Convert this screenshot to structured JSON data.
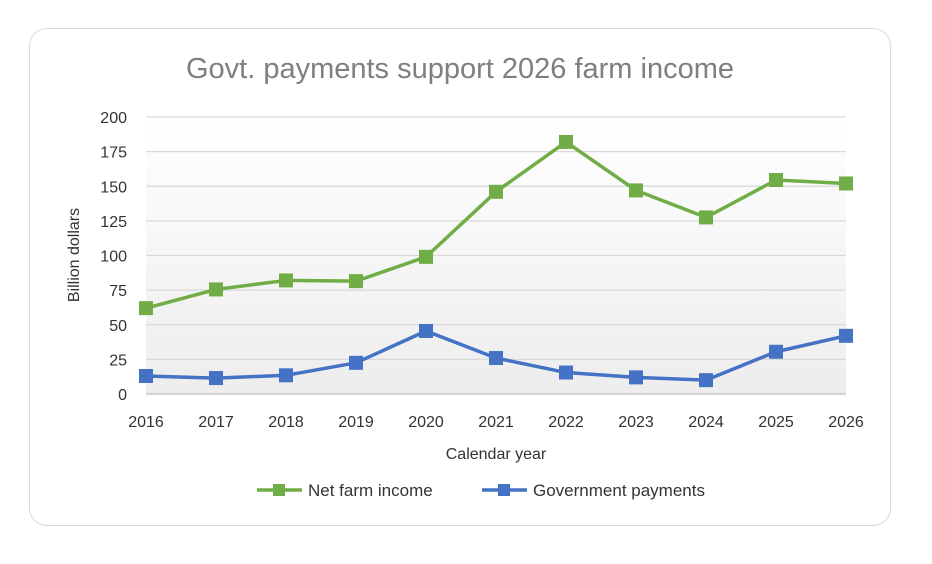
{
  "chart_data": {
    "type": "line",
    "title": "Govt. payments support 2026 farm income",
    "xlabel": "Calendar year",
    "ylabel": "Billion dollars",
    "x": [
      2016,
      2017,
      2018,
      2019,
      2020,
      2021,
      2022,
      2023,
      2024,
      2025,
      2026
    ],
    "x_tick_labels": [
      "2016",
      "2017",
      "2018",
      "2019",
      "2020",
      "2021",
      "2022",
      "2023",
      "2024",
      "2025",
      "2026"
    ],
    "ylim": [
      0,
      200
    ],
    "y_ticks": [
      0,
      25,
      50,
      75,
      100,
      125,
      150,
      175,
      200
    ],
    "y_tick_labels": [
      "0",
      "25",
      "50",
      "75",
      "100",
      "125",
      "150",
      "175",
      "200"
    ],
    "grid": true,
    "legend_position": "bottom",
    "series": [
      {
        "name": "Net farm income",
        "color": "#70ad47",
        "marker": "square",
        "values": [
          62,
          75.5,
          82,
          81.5,
          99,
          146,
          182,
          147,
          127.5,
          154.5,
          152
        ]
      },
      {
        "name": "Government payments",
        "color": "#4472c4",
        "marker": "square",
        "values": [
          13,
          11.5,
          13.5,
          22.5,
          45.5,
          26,
          15.5,
          12,
          10,
          30.5,
          42
        ]
      }
    ]
  }
}
